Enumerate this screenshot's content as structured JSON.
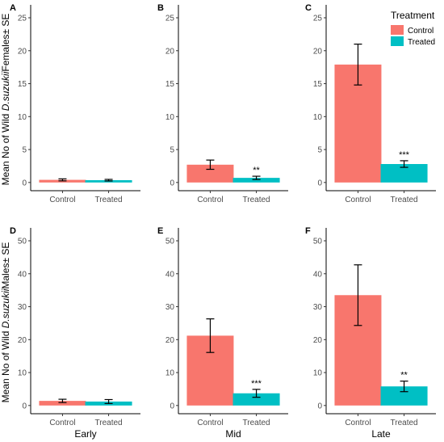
{
  "chart_data": {
    "type": "bar",
    "legend": {
      "title": "Treatment",
      "placement": "top-right",
      "entries": [
        {
          "label": "Control",
          "color": "#F8766D"
        },
        {
          "label": "Treated",
          "color": "#00BFC4"
        }
      ]
    },
    "rows": [
      {
        "ylabel_prefix": "Mean No of Wild ",
        "ylabel_italic": "D.suzukii",
        "ylabel_suffix": "Females± SE",
        "ylim": [
          0,
          25
        ],
        "yticks": [
          "0",
          "5",
          "10",
          "15",
          "20",
          "25"
        ],
        "panels": [
          {
            "label": "A",
            "categories": [
              "Control",
              "Treated"
            ],
            "values": [
              0.4,
              0.35
            ],
            "errors": [
              0.15,
              0.12
            ],
            "annotations": [
              "",
              ""
            ]
          },
          {
            "label": "B",
            "categories": [
              "Control",
              "Treated"
            ],
            "values": [
              2.7,
              0.7
            ],
            "errors": [
              0.7,
              0.25
            ],
            "annotations": [
              "",
              "**"
            ]
          },
          {
            "label": "C",
            "categories": [
              "Control",
              "Treated"
            ],
            "values": [
              17.9,
              2.8
            ],
            "errors": [
              3.1,
              0.5
            ],
            "annotations": [
              "",
              "***"
            ]
          }
        ]
      },
      {
        "ylabel_prefix": "Mean No of Wild ",
        "ylabel_italic": "D.suzukii",
        "ylabel_suffix": "Males± SE",
        "ylim": [
          0,
          50
        ],
        "yticks": [
          "0",
          "10",
          "20",
          "30",
          "40",
          "50"
        ],
        "panels": [
          {
            "label": "D",
            "categories": [
              "Control",
              "Treated"
            ],
            "values": [
              1.4,
              1.2
            ],
            "errors": [
              0.5,
              0.6
            ],
            "annotations": [
              "",
              ""
            ]
          },
          {
            "label": "E",
            "categories": [
              "Control",
              "Treated"
            ],
            "values": [
              21.2,
              3.7
            ],
            "errors": [
              5.1,
              1.2
            ],
            "annotations": [
              "",
              "***"
            ]
          },
          {
            "label": "F",
            "categories": [
              "Control",
              "Treated"
            ],
            "values": [
              33.5,
              5.8
            ],
            "errors": [
              9.2,
              1.6
            ],
            "annotations": [
              "",
              "**"
            ]
          }
        ]
      }
    ],
    "xlabels": [
      "Early",
      "Mid",
      "Late"
    ]
  }
}
